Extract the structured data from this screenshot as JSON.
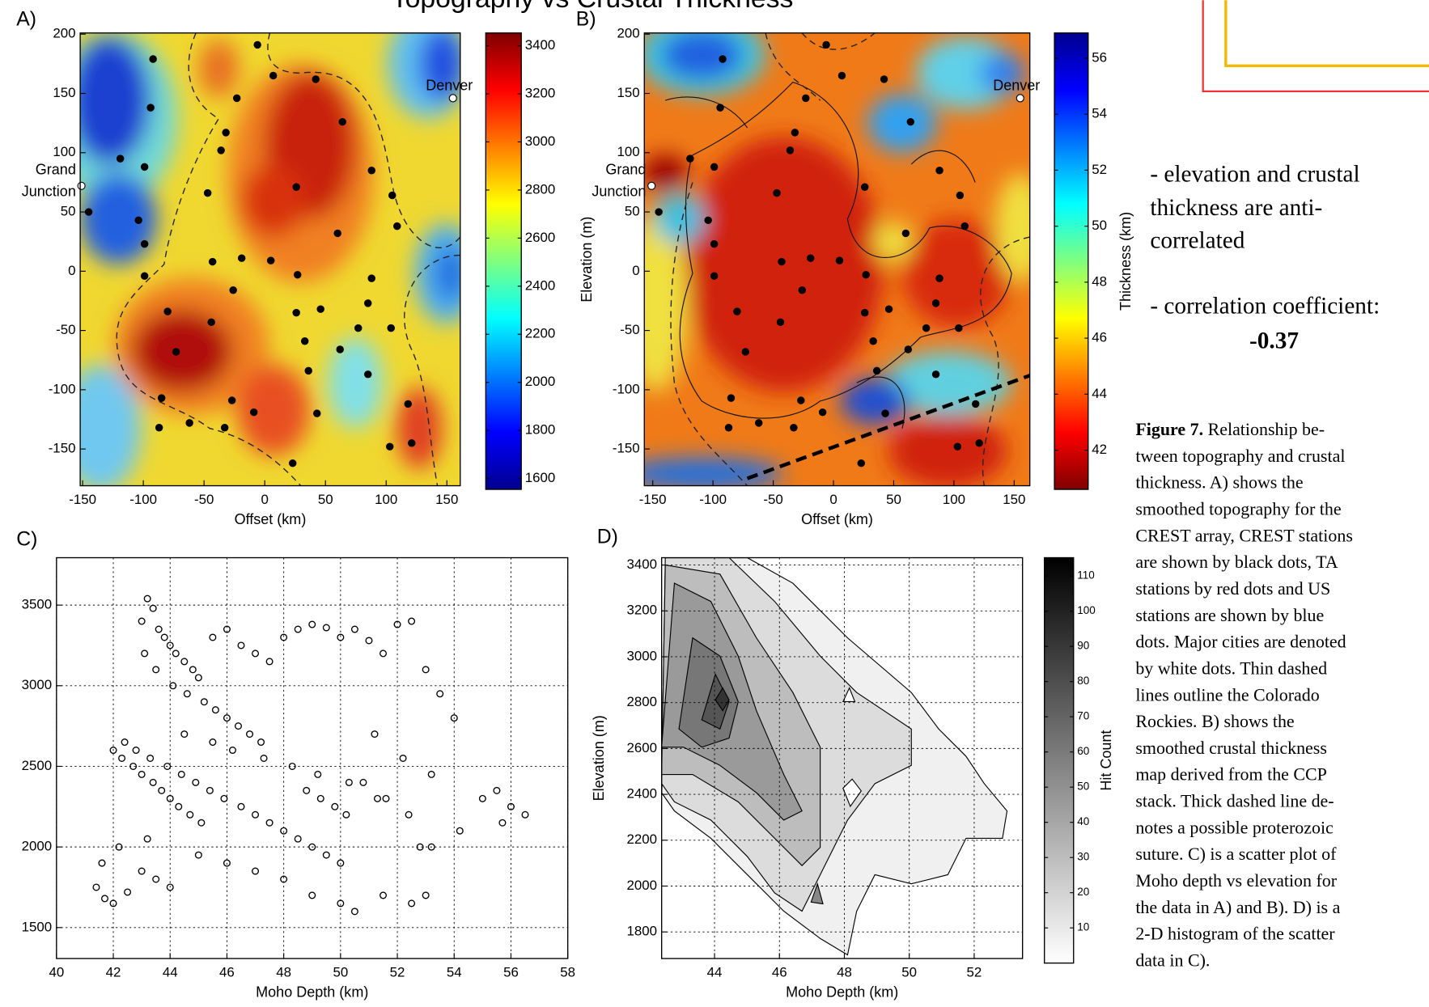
{
  "chart_data": [
    {
      "type": "map",
      "panel_label": "A)",
      "title": "Topography vs Crustal Thickness",
      "xlabel": "Offset (km)",
      "xlim": [
        -152,
        161
      ],
      "ylim": [
        -181,
        201
      ],
      "xticks": [
        -150,
        -100,
        -50,
        0,
        50,
        100,
        150
      ],
      "yticks": [
        -150,
        -100,
        -50,
        0,
        50,
        100,
        150,
        200
      ],
      "colorbar": {
        "colormap": "jet",
        "lim": [
          1555,
          3453
        ],
        "ticks": [
          1600,
          1800,
          2000,
          2200,
          2400,
          2600,
          2800,
          3000,
          3200,
          3400
        ]
      },
      "stations": {
        "color": "#000000",
        "x": [
          -92,
          -6,
          7,
          42,
          -23,
          -94,
          -32,
          -119,
          -36,
          -99,
          64,
          26,
          -47,
          88,
          105,
          109,
          60,
          -104,
          -145,
          -99,
          -43,
          -19,
          5,
          -99,
          -26,
          27,
          88,
          -80,
          -44,
          26,
          46,
          85,
          104,
          77,
          33,
          -73,
          36,
          85,
          62,
          -27,
          -85,
          -33,
          -9,
          43,
          118,
          -87,
          -62,
          23,
          103,
          121
        ],
        "y": [
          179,
          191,
          165,
          162,
          146,
          138,
          117,
          95,
          102,
          88,
          126,
          71,
          66,
          85,
          64,
          38,
          32,
          43,
          50,
          23,
          8,
          11,
          9,
          -4,
          -16,
          -3,
          -6,
          -34,
          -43,
          -35,
          -32,
          -27,
          -48,
          -48,
          -59,
          -68,
          -84,
          -87,
          -66,
          -109,
          -107,
          -132,
          -119,
          -120,
          -112,
          -132,
          -128,
          -162,
          -148,
          -145
        ]
      },
      "cities": [
        {
          "name": [
            "Denver"
          ],
          "x": 155,
          "y": 146
        },
        {
          "name": [
            "Grand",
            "Junction"
          ],
          "x": -151,
          "y": 72
        }
      ]
    },
    {
      "type": "map",
      "panel_label": "B)",
      "xlabel": "Offset (km)",
      "ylabel": "Elevation (m)",
      "xlim": [
        -157,
        163
      ],
      "ylim": [
        -181,
        201
      ],
      "xticks": [
        -150,
        -100,
        -50,
        0,
        50,
        100,
        150
      ],
      "yticks": [
        -150,
        -100,
        -50,
        0,
        50,
        100,
        150,
        200
      ],
      "colorbar": {
        "colormap": "jet_r",
        "label": "Thickness (km)",
        "lim": [
          40.6,
          56.9
        ],
        "ticks": [
          42,
          44,
          46,
          48,
          50,
          52,
          54,
          56
        ]
      }
    },
    {
      "type": "scatter",
      "panel_label": "C)",
      "xlabel": "Moho Depth (km)",
      "color": "#000000",
      "grid": true,
      "xlim": [
        40,
        58
      ],
      "ylim": [
        1308,
        3794
      ],
      "xticks": [
        40,
        42,
        44,
        46,
        48,
        50,
        52,
        54,
        56,
        58
      ],
      "yticks": [
        1500,
        2000,
        2500,
        3000,
        3500
      ],
      "x": [
        43.2,
        43.4,
        43.0,
        43.6,
        43.8,
        44.0,
        44.2,
        44.5,
        44.8,
        45.0,
        43.1,
        43.5,
        44.1,
        44.6,
        45.2,
        45.6,
        46.0,
        46.4,
        46.8,
        47.2,
        42.4,
        42.8,
        43.3,
        43.9,
        44.4,
        44.9,
        45.4,
        45.9,
        46.5,
        47.0,
        47.5,
        48.0,
        48.5,
        49.0,
        49.5,
        50.0,
        48.8,
        49.3,
        49.8,
        50.2,
        42.0,
        42.3,
        42.7,
        43.0,
        43.4,
        43.7,
        44.0,
        44.3,
        44.7,
        45.1,
        45.5,
        46.0,
        46.5,
        47.0,
        47.5,
        48.0,
        48.5,
        49.0,
        49.5,
        50.0,
        50.5,
        51.0,
        51.5,
        52.0,
        52.5,
        53.0,
        53.5,
        54.0,
        51.2,
        52.2,
        50.8,
        51.6,
        52.4,
        53.2,
        54.2,
        55.0,
        55.5,
        56.0,
        56.5,
        55.7,
        41.4,
        41.7,
        42.0,
        42.5,
        43.0,
        43.5,
        44.0,
        41.6,
        42.2,
        43.2,
        45.0,
        46.0,
        47.0,
        48.0,
        49.0,
        50.0,
        50.5,
        51.5,
        52.5,
        53.0,
        44.5,
        45.5,
        46.2,
        47.3,
        48.3,
        49.2,
        50.3,
        51.3,
        52.8,
        53.2
      ],
      "values": [
        3540,
        3480,
        3400,
        3350,
        3300,
        3250,
        3200,
        3150,
        3100,
        3050,
        3200,
        3100,
        3000,
        2950,
        2900,
        2850,
        2800,
        2750,
        2700,
        2650,
        2650,
        2600,
        2550,
        2500,
        2450,
        2400,
        2350,
        2300,
        2250,
        2200,
        2150,
        2100,
        2050,
        2000,
        1950,
        1900,
        2350,
        2300,
        2250,
        2200,
        2600,
        2550,
        2500,
        2450,
        2400,
        2350,
        2300,
        2250,
        2200,
        2150,
        3300,
        3350,
        3250,
        3200,
        3150,
        3300,
        3350,
        3380,
        3360,
        3300,
        3350,
        3280,
        3200,
        3380,
        3400,
        3100,
        2950,
        2800,
        2700,
        2550,
        2400,
        2300,
        2200,
        2000,
        2100,
        2300,
        2350,
        2250,
        2200,
        2150,
        1750,
        1680,
        1650,
        1720,
        1850,
        1800,
        1750,
        1900,
        2000,
        2050,
        1950,
        1900,
        1850,
        1800,
        1700,
        1650,
        1600,
        1700,
        1650,
        1700,
        2700,
        2650,
        2600,
        2550,
        2500,
        2450,
        2400,
        2300,
        2000,
        2450
      ]
    },
    {
      "type": "histogram2d",
      "panel_label": "D)",
      "xlabel": "Moho Depth (km)",
      "ylabel": "Elevation (m)",
      "grid": true,
      "xlim": [
        42.37,
        53.49
      ],
      "ylim": [
        1684,
        3432
      ],
      "xticks": [
        44,
        46,
        48,
        50,
        52
      ],
      "yticks": [
        1800,
        2000,
        2200,
        2400,
        2600,
        2800,
        3000,
        3200,
        3400
      ],
      "colorbar": {
        "colormap": "gray_r",
        "label": "Hit Count",
        "lim": [
          0,
          115.2
        ],
        "ticks": [
          10,
          20,
          30,
          40,
          50,
          60,
          70,
          80,
          90,
          100,
          110
        ]
      }
    }
  ],
  "notes": {
    "lines": [
      "- elevation and crustal",
      "thickness are anti-",
      "correlated",
      "- correlation coefficient:"
    ],
    "correlation_coefficient": -0.37
  },
  "caption": {
    "label": "Figure 7.",
    "lines": [
      "Relationship be-",
      "tween topography and crustal",
      "thickness. A) shows the",
      "smoothed topography for the",
      "CREST array, CREST stations",
      "are shown by black dots, TA",
      "stations by red dots and US",
      "stations are shown by blue",
      "dots. Major cities are denoted",
      "by white dots. Thin dashed",
      "lines outline the Colorado",
      "Rockies. B) shows the",
      "smoothed crustal thickness",
      "map derived from the CCP",
      "stack. Thick dashed line de-",
      "notes a possible proterozoic",
      "suture. C) is a scatter plot of",
      "Moho depth vs elevation for",
      "the data in A) and B). D) is a",
      "2-D histogram of the scatter",
      "data in C)."
    ]
  }
}
